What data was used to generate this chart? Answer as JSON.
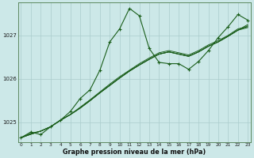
{
  "title": "Graphe pression niveau de la mer (hPa)",
  "xlabel": "Graphe pression niveau de la mer (hPa)",
  "background_color": "#cce8e8",
  "grid_color": "#aacccc",
  "line_color": "#1a5e1a",
  "x_ticks": [
    0,
    1,
    2,
    3,
    4,
    5,
    6,
    7,
    8,
    9,
    10,
    11,
    12,
    13,
    14,
    15,
    16,
    17,
    18,
    19,
    20,
    21,
    22,
    23
  ],
  "y_ticks": [
    1025,
    1026,
    1027
  ],
  "ylim": [
    1024.55,
    1027.75
  ],
  "xlim": [
    -0.3,
    23.3
  ],
  "linear_series": [
    [
      1024.65,
      1024.75,
      1024.8,
      1024.9,
      1025.05,
      1025.18,
      1025.35,
      1025.52,
      1025.7,
      1025.88,
      1026.05,
      1026.2,
      1026.35,
      1026.48,
      1026.6,
      1026.65,
      1026.6,
      1026.55,
      1026.65,
      1026.78,
      1026.88,
      1027.0,
      1027.15,
      1027.2
    ],
    [
      1024.65,
      1024.73,
      1024.8,
      1024.9,
      1025.05,
      1025.18,
      1025.33,
      1025.5,
      1025.68,
      1025.85,
      1026.02,
      1026.18,
      1026.32,
      1026.45,
      1026.57,
      1026.62,
      1026.57,
      1026.52,
      1026.62,
      1026.75,
      1026.85,
      1026.98,
      1027.12,
      1027.18
    ],
    [
      1024.65,
      1024.73,
      1024.8,
      1024.9,
      1025.05,
      1025.18,
      1025.33,
      1025.5,
      1025.68,
      1025.85,
      1026.02,
      1026.18,
      1026.32,
      1026.45,
      1026.57,
      1026.62,
      1026.57,
      1026.52,
      1026.62,
      1026.75,
      1026.85,
      1026.98,
      1027.12,
      1027.22
    ],
    [
      1024.65,
      1024.73,
      1024.8,
      1024.9,
      1025.05,
      1025.18,
      1025.33,
      1025.5,
      1025.68,
      1025.85,
      1026.02,
      1026.18,
      1026.32,
      1026.45,
      1026.57,
      1026.62,
      1026.57,
      1026.52,
      1026.62,
      1026.75,
      1026.85,
      1026.98,
      1027.12,
      1027.25
    ]
  ],
  "zigzag_series": {
    "x": [
      0,
      1,
      2,
      3,
      4,
      5,
      6,
      7,
      8,
      9,
      10,
      11,
      12,
      13,
      14,
      15,
      16,
      17,
      18,
      19,
      20,
      21,
      22,
      23
    ],
    "y": [
      1024.65,
      1024.78,
      1024.72,
      1024.9,
      1025.05,
      1025.25,
      1025.55,
      1025.75,
      1026.2,
      1026.85,
      1027.15,
      1027.62,
      1027.45,
      1026.7,
      1026.38,
      1026.35,
      1026.35,
      1026.22,
      1026.4,
      1026.65,
      1026.95,
      1027.2,
      1027.48,
      1027.35
    ]
  }
}
